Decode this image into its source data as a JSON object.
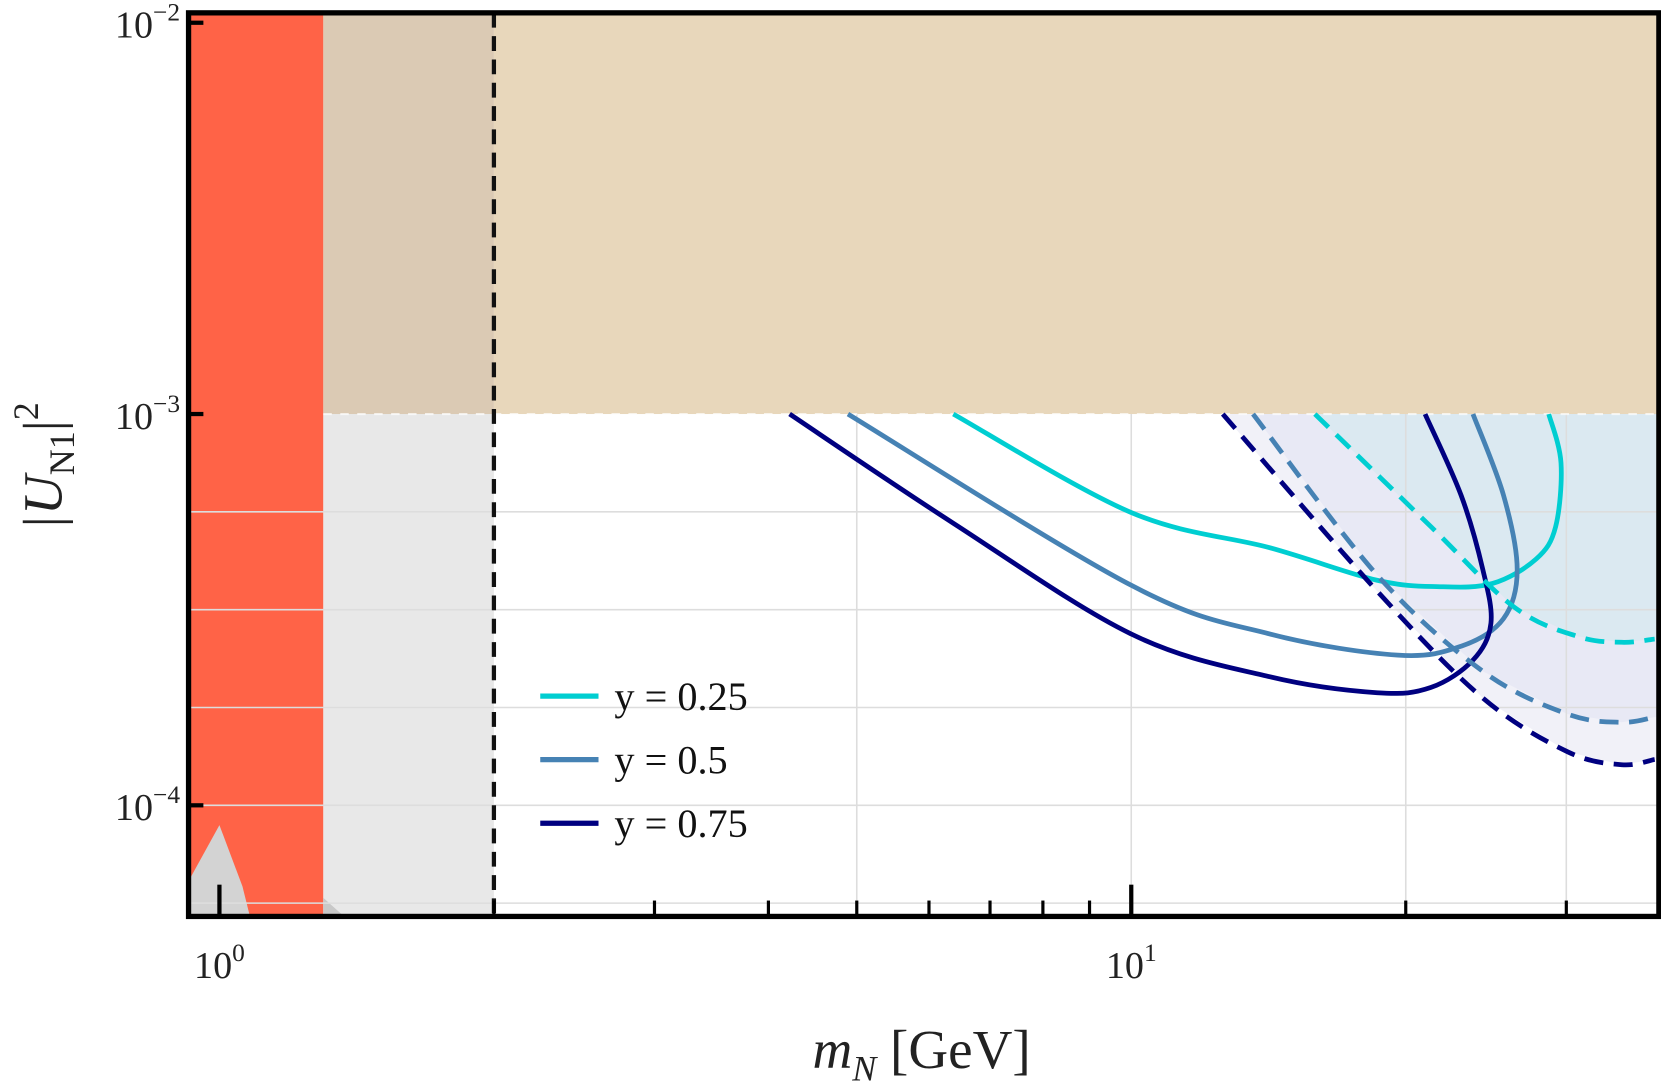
{
  "chart_data": {
    "type": "line",
    "xlabel": {
      "main": "m",
      "sub": "N",
      "rest": " [GeV]"
    },
    "ylabel": {
      "main": "|U",
      "sub": "N1",
      "rest": "|",
      "sup": "2"
    },
    "x_scale": "log",
    "y_scale": "log",
    "xlim": [
      0.925,
      37.9
    ],
    "ylim": [
      5.2e-05,
      0.0106
    ],
    "grid": true,
    "x_ticks": [
      {
        "value": 1,
        "base": "10",
        "exp": "0"
      },
      {
        "value": 10,
        "base": "10",
        "exp": "1"
      }
    ],
    "y_ticks": [
      {
        "value": 0.01,
        "base": "10",
        "exp": "−2"
      },
      {
        "value": 0.001,
        "base": "10",
        "exp": "−3"
      },
      {
        "value": 0.0001,
        "base": "10",
        "exp": "−4"
      }
    ],
    "legend_position": "lower-left-center",
    "regions": [
      {
        "kind": "band",
        "color": "#FF6347",
        "x": [
          0.925,
          1.3
        ],
        "y": [
          5.2e-05,
          0.0106
        ]
      },
      {
        "kind": "band",
        "color": "#E8E8E8",
        "x": [
          1.3,
          2.0
        ],
        "y": [
          5.2e-05,
          0.001
        ]
      },
      {
        "kind": "band",
        "color": "#DBCAB4",
        "x": [
          1.3,
          2.0
        ],
        "y": [
          0.001,
          0.0106
        ]
      },
      {
        "kind": "band",
        "color": "#E8D7BB",
        "x": [
          2.0,
          37.9
        ],
        "y": [
          0.001,
          0.0106
        ]
      }
    ],
    "vertical_line": {
      "x": 2.0,
      "style": "dashed",
      "color": "#111111"
    },
    "series": [
      {
        "name": "y = 0.25",
        "color": "#00CED1",
        "style": "solid",
        "x": [
          6.38,
          10,
          14.2,
          18.6,
          21.8,
          24.9,
          27.8,
          29.2,
          29.6,
          28.7
        ],
        "y": [
          0.001,
          0.00056,
          0.000455,
          0.000376,
          0.000362,
          0.000369,
          0.000426,
          0.000515,
          0.00075,
          0.001
        ]
      },
      {
        "name": "y = 0.5",
        "color": "#4682B4",
        "style": "solid",
        "x": [
          4.89,
          10,
          14.2,
          19.6,
          23.0,
          25.6,
          26.5,
          25.6,
          23.7
        ],
        "y": [
          0.001,
          0.000365,
          0.000274,
          0.000242,
          0.000255,
          0.0003,
          0.0004,
          0.00062,
          0.001
        ]
      },
      {
        "name": "y = 0.75",
        "color": "#000080",
        "style": "solid",
        "x": [
          4.22,
          6.38,
          10,
          14.2,
          18.6,
          21.3,
          23.7,
          24.8,
          24.3,
          23.0,
          21.0
        ],
        "y": [
          0.001,
          0.000526,
          0.000274,
          0.000213,
          0.000194,
          0.0002,
          0.000235,
          0.000292,
          0.0004,
          0.00062,
          0.001
        ]
      },
      {
        "color": "#00CED1",
        "style": "dashed",
        "fill": "#D8E9F0",
        "x": [
          15.9,
          21.3,
          26.3,
          30.9,
          34.5,
          37.5
        ],
        "y": [
          0.001,
          0.000516,
          0.000321,
          0.00027,
          0.000261,
          0.000266
        ]
      },
      {
        "color": "#4682B4",
        "style": "dashed",
        "fill": "#E6E8F4",
        "x": [
          13.6,
          18.6,
          24.3,
          30.1,
          34.5,
          37.5
        ],
        "y": [
          0.001,
          0.000388,
          0.00022,
          0.000171,
          0.000163,
          0.000168
        ]
      },
      {
        "color": "#000080",
        "style": "dashed",
        "fill": "#EEEEF7",
        "x": [
          12.6,
          18.6,
          24.3,
          30.1,
          34.5,
          37.5
        ],
        "y": [
          0.001,
          0.000353,
          0.000188,
          0.000137,
          0.000127,
          0.000131
        ]
      }
    ]
  }
}
